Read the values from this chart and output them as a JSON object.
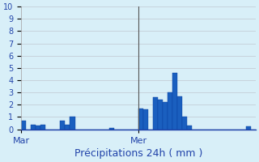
{
  "title": "",
  "xlabel": "Précipitations 24h ( mm )",
  "ylabel": "",
  "ylim": [
    0,
    10
  ],
  "yticks": [
    0,
    1,
    2,
    3,
    4,
    5,
    6,
    7,
    8,
    9,
    10
  ],
  "background_color": "#d8eff8",
  "grid_color": "#c0c8d0",
  "bar_color": "#1a5fbf",
  "bar_edge_color": "#0a3f9f",
  "vline_color": "#555555",
  "xlabel_color": "#2244aa",
  "tick_color": "#2244aa",
  "n_bars": 48,
  "x_mar_pos": 0,
  "x_mer_pos": 24,
  "vline_x": 24,
  "bar_values": [
    0.7,
    0.0,
    0.4,
    0.3,
    0.4,
    0.0,
    0.0,
    0.0,
    0.7,
    0.4,
    1.0,
    0.0,
    0.0,
    0.0,
    0.0,
    0.0,
    0.0,
    0.0,
    0.1,
    0.0,
    0.0,
    0.0,
    0.0,
    0.0,
    1.7,
    1.6,
    0.0,
    2.6,
    2.4,
    2.2,
    3.0,
    4.6,
    2.7,
    1.0,
    0.3,
    0.0,
    0.0,
    0.0,
    0.0,
    0.0,
    0.0,
    0.0,
    0.0,
    0.0,
    0.0,
    0.0,
    0.25,
    0.0
  ],
  "xtick_positions": [
    0,
    24
  ],
  "xtick_labels": [
    "Mar",
    "Mer"
  ]
}
